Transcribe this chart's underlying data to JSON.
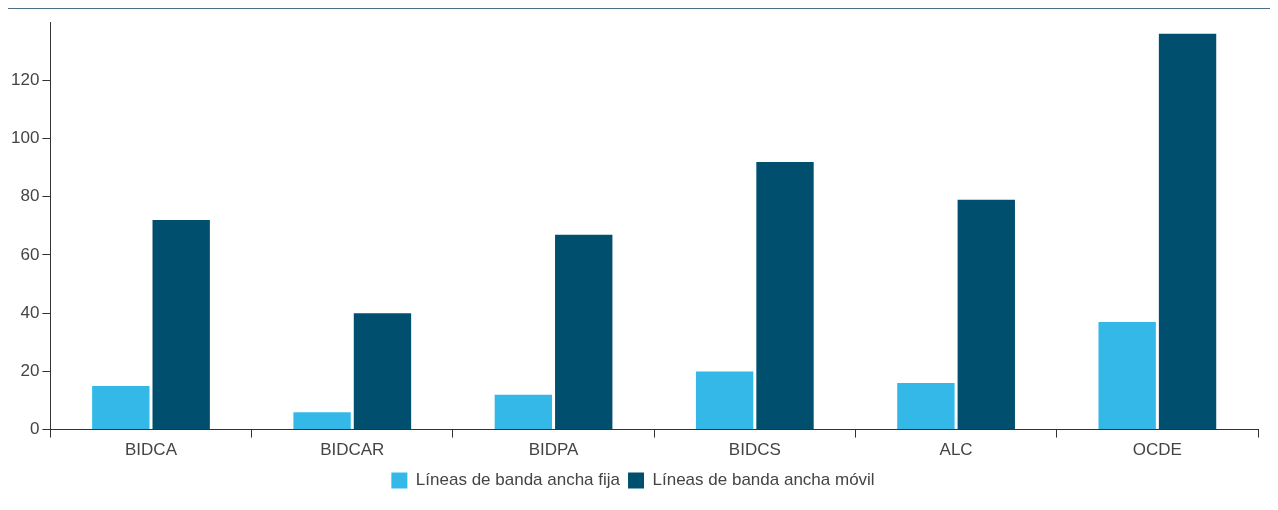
{
  "chart_data": {
    "type": "bar",
    "categories": [
      "BIDCA",
      "BIDCAR",
      "BIDPA",
      "BIDCS",
      "ALC",
      "OCDE"
    ],
    "series": [
      {
        "name": "Líneas de banda ancha fija",
        "color": "#33b8e8",
        "values": [
          15,
          6,
          12,
          20,
          16,
          37
        ]
      },
      {
        "name": "Líneas de banda ancha móvil",
        "color": "#004f6e",
        "values": [
          72,
          40,
          67,
          92,
          79,
          136
        ]
      }
    ],
    "ylim": [
      0,
      140
    ],
    "yticks": [
      0,
      20,
      40,
      60,
      80,
      100,
      120
    ],
    "grid": false,
    "legend": "bottom"
  }
}
